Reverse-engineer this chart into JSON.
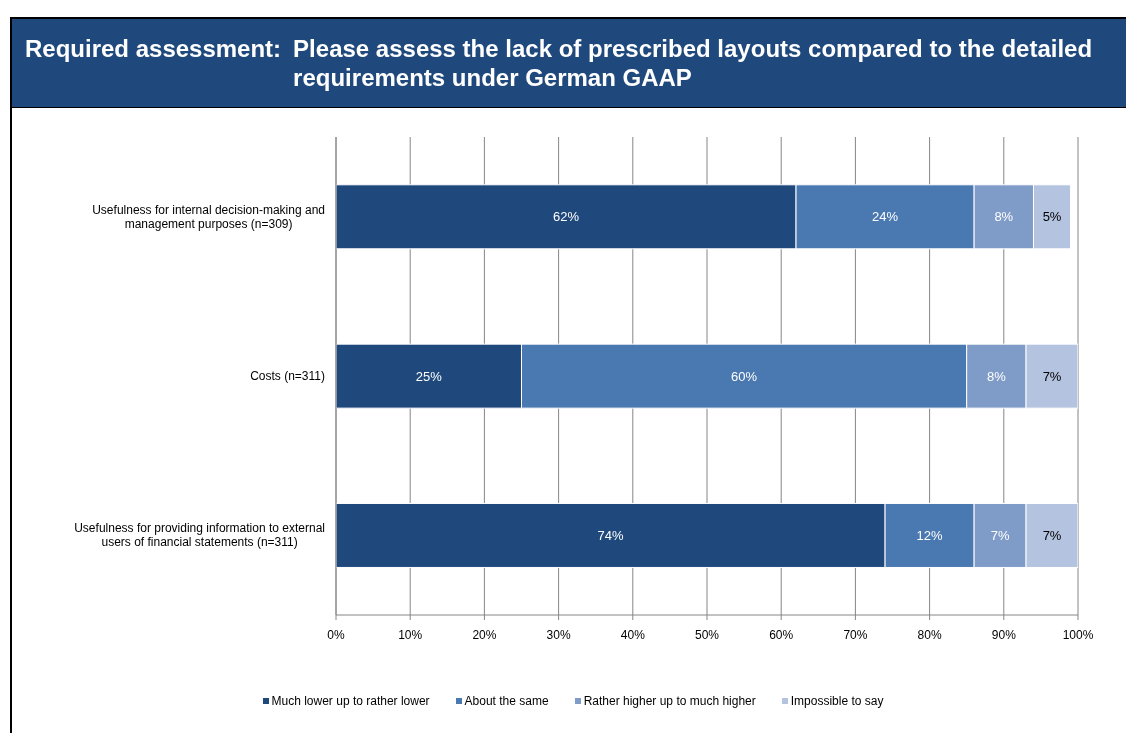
{
  "chart_data": {
    "type": "bar",
    "orientation": "horizontal",
    "stacked": true,
    "title": "Required assessment:",
    "subtitle": "Please assess the lack of prescribed layouts compared to the detailed requirements under German GAAP",
    "categories": [
      "Usefulness for internal decision-making and management purposes (n=309)",
      "Costs (n=311)",
      "Usefulness for providing information to external users of financial statements (n=311)"
    ],
    "series": [
      {
        "name": "Much lower up to rather lower",
        "color": "#1f497d",
        "values": [
          62,
          25,
          74
        ],
        "value_labels": [
          "62%",
          "25%",
          "74%"
        ]
      },
      {
        "name": "About the same",
        "color": "#4a78b0",
        "values": [
          24,
          60,
          12
        ],
        "value_labels": [
          "24%",
          "60%",
          "12%"
        ]
      },
      {
        "name": "Rather higher up to much higher",
        "color": "#7f9bc7",
        "values": [
          8,
          8,
          7
        ],
        "value_labels": [
          "8%",
          "8%",
          "7%"
        ]
      },
      {
        "name": "Impossible to say",
        "color": "#b4c3df",
        "values": [
          5,
          7,
          7
        ],
        "value_labels": [
          "5%",
          "7%",
          "7%"
        ]
      }
    ],
    "xlim": [
      0,
      100
    ],
    "xticks": [
      {
        "value": 0,
        "label": "0%"
      },
      {
        "value": 10,
        "label": "10%"
      },
      {
        "value": 20,
        "label": "20%"
      },
      {
        "value": 30,
        "label": "30%"
      },
      {
        "value": 40,
        "label": "40%"
      },
      {
        "value": 50,
        "label": "50%"
      },
      {
        "value": 60,
        "label": "60%"
      },
      {
        "value": 70,
        "label": "70%"
      },
      {
        "value": 80,
        "label": "80%"
      },
      {
        "value": 90,
        "label": "90%"
      },
      {
        "value": 100,
        "label": "100%"
      }
    ],
    "grid": "x",
    "legend": "bottom"
  }
}
